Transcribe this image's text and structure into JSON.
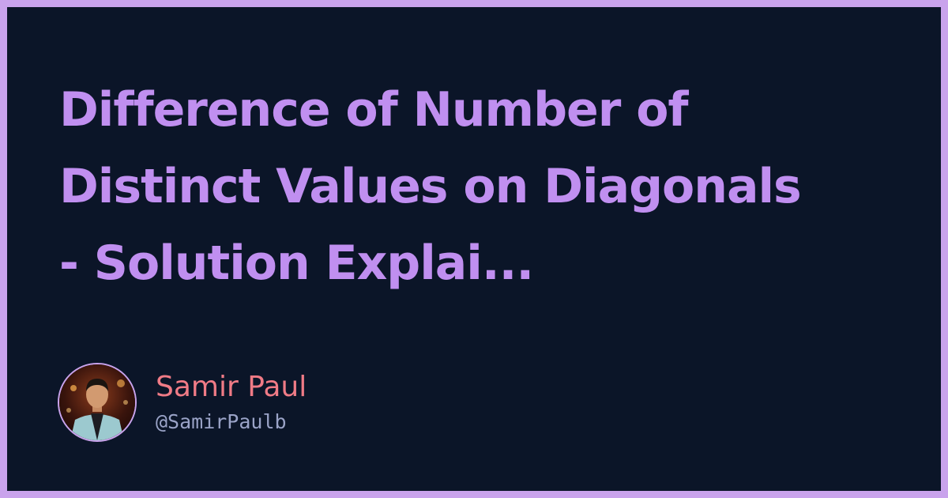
{
  "card": {
    "title_lines": [
      "Difference of Number of",
      "Distinct Values on Diagonals",
      "- Solution Explai..."
    ]
  },
  "author": {
    "name": "Samir Paul",
    "handle": "@SamirPaulb",
    "avatar_icon": "user-photo"
  },
  "colors": {
    "background": "#0b1528",
    "frame": "#c9a3ec",
    "title": "#c08ff0",
    "author_name": "#f07b86",
    "author_handle": "#9aa3c7"
  }
}
